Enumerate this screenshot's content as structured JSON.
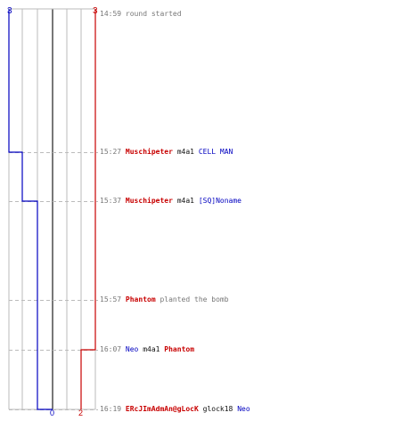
{
  "colors": {
    "terrorist": "#c80000",
    "counter_terrorist": "#0000c0",
    "neutral": "#111111",
    "muted": "#777777",
    "grid": "#bbbbbb",
    "center_line": "#555555"
  },
  "score_labels": {
    "ct_start": "3",
    "t_start": "3",
    "ct_end": "0",
    "t_end": "2"
  },
  "events": [
    {
      "time": "14:59",
      "parts": [
        {
          "text": "round started",
          "role": "muted"
        }
      ]
    },
    {
      "time": "15:27",
      "parts": [
        {
          "text": "Muschipeter",
          "role": "t"
        },
        {
          "text": "m4a1",
          "role": "neutral"
        },
        {
          "text": "CELL MAN",
          "role": "ct"
        }
      ]
    },
    {
      "time": "15:37",
      "parts": [
        {
          "text": "Muschipeter",
          "role": "t"
        },
        {
          "text": "m4a1",
          "role": "neutral"
        },
        {
          "text": "[SQ]Noname",
          "role": "ct"
        }
      ]
    },
    {
      "time": "15:57",
      "parts": [
        {
          "text": "Phantom",
          "role": "t"
        },
        {
          "text": "planted the bomb",
          "role": "muted"
        }
      ]
    },
    {
      "time": "16:07",
      "parts": [
        {
          "text": "Neo",
          "role": "ct"
        },
        {
          "text": "m4a1",
          "role": "neutral"
        },
        {
          "text": "Phantom",
          "role": "t"
        }
      ]
    },
    {
      "time": "16:19",
      "parts": [
        {
          "text": "ERcJImAdmAn@gLocK",
          "role": "t"
        },
        {
          "text": "glock18",
          "role": "neutral"
        },
        {
          "text": "Neo",
          "role": "ct"
        }
      ]
    }
  ],
  "alive_ct_steps": [
    3,
    2,
    1,
    1,
    1,
    0
  ],
  "alive_t_steps": [
    3,
    3,
    3,
    3,
    2,
    2
  ]
}
